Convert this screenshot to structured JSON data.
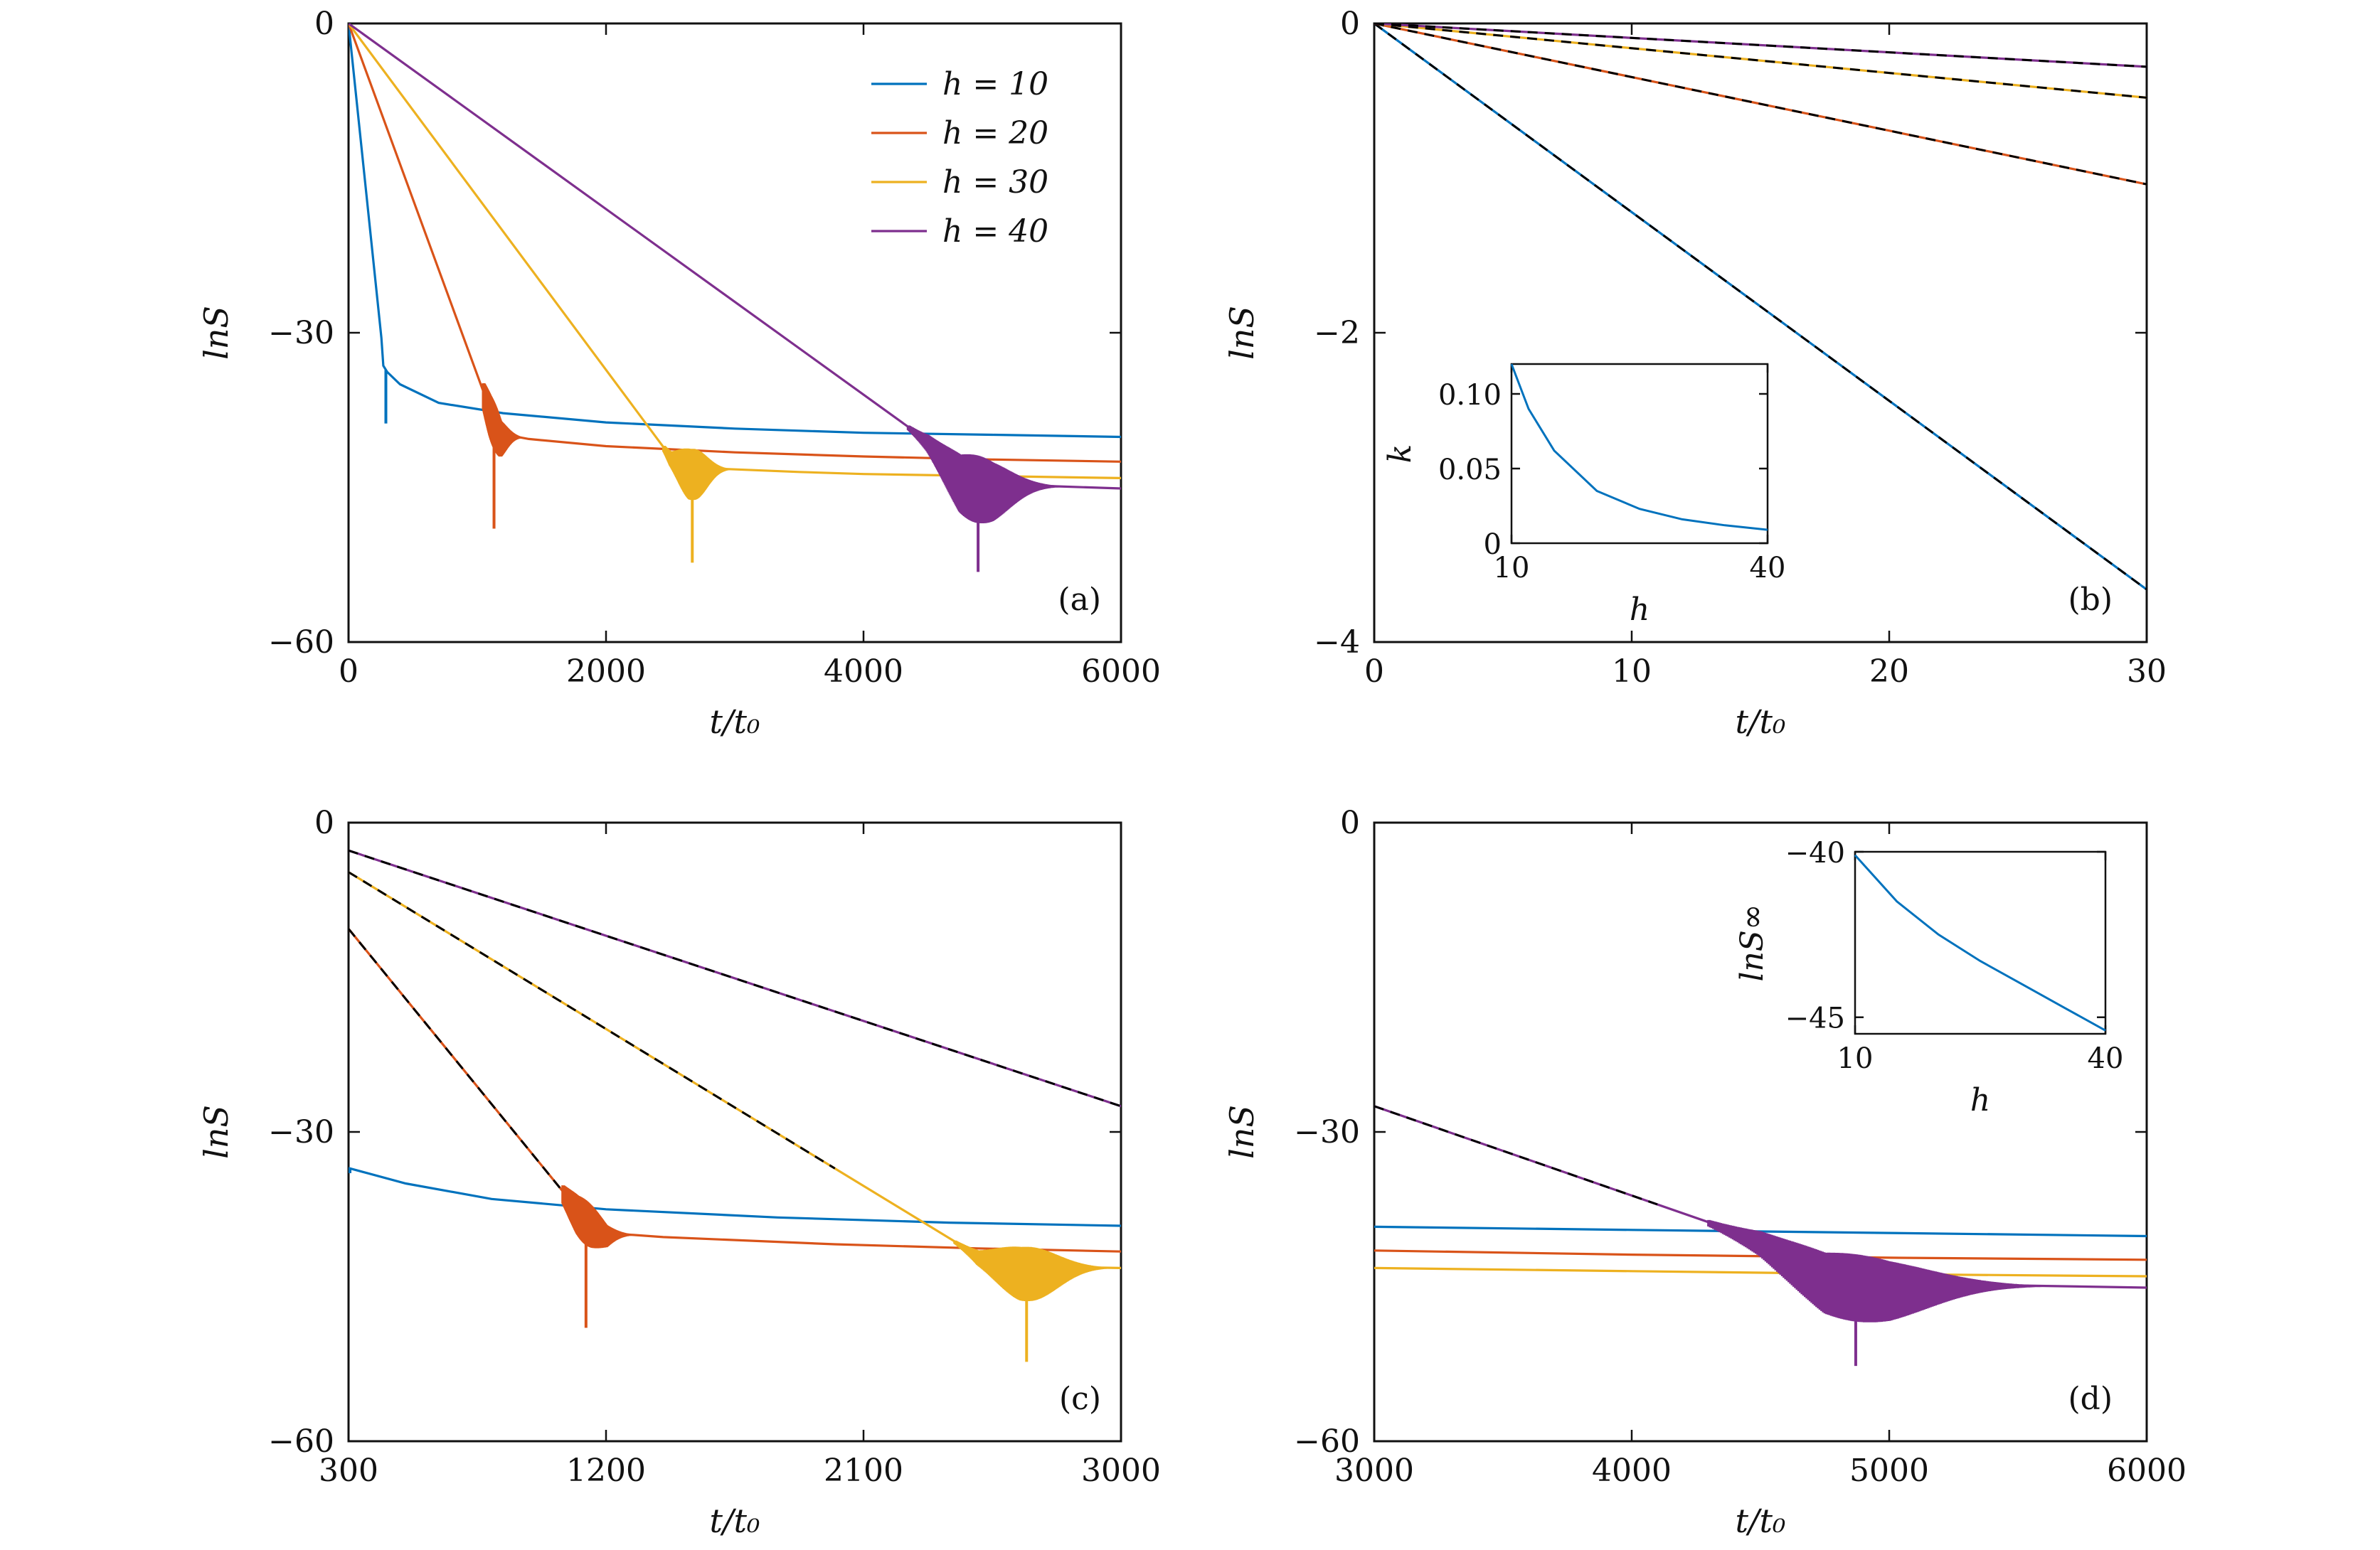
{
  "figure": {
    "colors": {
      "h10": "#0072bd",
      "h20": "#d95319",
      "h30": "#edb120",
      "h40": "#7e2f8e",
      "fit": "#000000"
    },
    "legend": {
      "entries": [
        "h = 10",
        "h = 20",
        "h = 30",
        "h = 40"
      ]
    }
  },
  "chart_data": [
    {
      "panel": "(a)",
      "type": "line",
      "xlabel": "t/t₀",
      "ylabel": "lnS",
      "xlim": [
        0,
        6000
      ],
      "ylim": [
        -60,
        0
      ],
      "xticks": [
        0,
        2000,
        4000,
        6000
      ],
      "yticks": [
        0,
        -30,
        -60
      ],
      "xtick_labels": [
        "0",
        "2000",
        "4000",
        "6000"
      ],
      "ytick_labels": [
        "0",
        "−30",
        "−60"
      ],
      "legend": "top-right",
      "series": [
        {
          "name": "h = 10",
          "color": "h10",
          "points": [
            [
              0,
              0
            ],
            [
              255,
              -30.5
            ],
            [
              270,
              -33.2
            ],
            [
              300,
              -33.8
            ],
            [
              400,
              -35
            ],
            [
              700,
              -36.8
            ],
            [
              1200,
              -37.8
            ],
            [
              2000,
              -38.7
            ],
            [
              3000,
              -39.3
            ],
            [
              4000,
              -39.7
            ],
            [
              5000,
              -39.9
            ],
            [
              6000,
              -40.1
            ]
          ],
          "dip": [
            290,
            -38.8
          ]
        },
        {
          "name": "h = 20",
          "color": "h20",
          "points": [
            [
              0,
              0
            ],
            [
              1100,
              -37.5
            ],
            [
              1180,
              -39.8
            ],
            [
              1400,
              -40.3
            ],
            [
              2000,
              -41
            ],
            [
              3000,
              -41.6
            ],
            [
              4000,
              -42
            ],
            [
              5000,
              -42.3
            ],
            [
              6000,
              -42.5
            ]
          ],
          "dip": [
            1130,
            -49
          ]
        },
        {
          "name": "h = 30",
          "color": "h30",
          "points": [
            [
              0,
              0
            ],
            [
              2500,
              -42
            ],
            [
              2650,
              -43
            ],
            [
              2900,
              -43.2
            ],
            [
              3500,
              -43.5
            ],
            [
              4000,
              -43.7
            ],
            [
              5000,
              -43.9
            ],
            [
              6000,
              -44.1
            ]
          ],
          "dip": [
            2670,
            -52.3
          ]
        },
        {
          "name": "h = 40",
          "color": "h40",
          "points": [
            [
              0,
              0
            ],
            [
              4500,
              -40.5
            ],
            [
              4750,
              -43.8
            ],
            [
              5000,
              -44.6
            ],
            [
              5500,
              -44.9
            ],
            [
              6000,
              -45.1
            ]
          ],
          "dip": [
            4890,
            -53.2
          ]
        }
      ],
      "bursts": [
        {
          "series": "h = 20",
          "x0": 1050,
          "x1": 1380,
          "xpeak": 1130,
          "ypeak": -39.5,
          "amp": 2.7
        },
        {
          "series": "h = 30",
          "x0": 2450,
          "x1": 3000,
          "xpeak": 2670,
          "ypeak": -43.0,
          "amp": 3.2
        },
        {
          "series": "h = 40",
          "x0": 4350,
          "x1": 5600,
          "xpeak": 4880,
          "ypeak": -44.6,
          "amp": 4.2
        }
      ]
    },
    {
      "panel": "(b)",
      "type": "line",
      "xlabel": "t/t₀",
      "ylabel": "lnS",
      "xlim": [
        0,
        30
      ],
      "ylim": [
        -4,
        0
      ],
      "xticks": [
        0,
        10,
        20,
        30
      ],
      "yticks": [
        0,
        -2,
        -4
      ],
      "xtick_labels": [
        "0",
        "10",
        "20",
        "30"
      ],
      "ytick_labels": [
        "0",
        "−2",
        "−4"
      ],
      "series": [
        {
          "name": "h = 10",
          "color": "h10",
          "points": [
            [
              0,
              0
            ],
            [
              30,
              -3.66
            ]
          ],
          "dashed_fit": true
        },
        {
          "name": "h = 20",
          "color": "h20",
          "points": [
            [
              0,
              0
            ],
            [
              30,
              -1.04
            ]
          ],
          "dashed_fit": true
        },
        {
          "name": "h = 30",
          "color": "h30",
          "points": [
            [
              0,
              0
            ],
            [
              30,
              -0.48
            ]
          ],
          "dashed_fit": true
        },
        {
          "name": "h = 40",
          "color": "h40",
          "points": [
            [
              0,
              0
            ],
            [
              30,
              -0.28
            ]
          ],
          "dashed_fit": true
        }
      ],
      "inset": {
        "xlabel": "h",
        "ylabel": "k",
        "xlim": [
          10,
          40
        ],
        "ylim": [
          0,
          0.12
        ],
        "xticks": [
          10,
          40
        ],
        "yticks": [
          0,
          0.05,
          0.1
        ],
        "xtick_labels": [
          "10",
          "40"
        ],
        "ytick_labels": [
          "0",
          "0.05",
          "0.10"
        ],
        "series": [
          {
            "color": "h10",
            "points": [
              [
                10,
                0.12
              ],
              [
                12,
                0.09
              ],
              [
                15,
                0.062
              ],
              [
                20,
                0.035
              ],
              [
                25,
                0.023
              ],
              [
                30,
                0.016
              ],
              [
                35,
                0.012
              ],
              [
                40,
                0.009
              ]
            ]
          }
        ]
      }
    },
    {
      "panel": "(c)",
      "type": "line",
      "xlabel": "t/t₀",
      "ylabel": "lnS",
      "xlim": [
        300,
        3000
      ],
      "ylim": [
        -60,
        0
      ],
      "xticks": [
        300,
        1200,
        2100,
        3000
      ],
      "yticks": [
        0,
        -30,
        -60
      ],
      "xtick_labels": [
        "300",
        "1200",
        "2100",
        "3000"
      ],
      "ytick_labels": [
        "0",
        "−30",
        "−60"
      ],
      "series": [
        {
          "name": "h = 10",
          "color": "h10",
          "points": [
            [
              300,
              -33.5
            ],
            [
              500,
              -35
            ],
            [
              800,
              -36.5
            ],
            [
              1200,
              -37.5
            ],
            [
              1800,
              -38.3
            ],
            [
              2400,
              -38.8
            ],
            [
              3000,
              -39.1
            ]
          ],
          "dip": [
            305,
            -34
          ]
        },
        {
          "name": "h = 20",
          "color": "h20",
          "points": [
            [
              300,
              -10.3
            ],
            [
              1100,
              -37.5
            ],
            [
              1200,
              -39.8
            ],
            [
              1400,
              -40.2
            ],
            [
              2000,
              -40.9
            ],
            [
              2500,
              -41.3
            ],
            [
              3000,
              -41.6
            ]
          ],
          "dip": [
            1130,
            -49
          ],
          "dashed_fit": [
            300,
            1040
          ]
        },
        {
          "name": "h = 30",
          "color": "h30",
          "points": [
            [
              300,
              -4.8
            ],
            [
              2500,
              -42
            ],
            [
              2650,
              -43
            ],
            [
              2800,
              -43.1
            ],
            [
              3000,
              -43.2
            ]
          ],
          "dip": [
            2670,
            -52.3
          ],
          "dashed_fit": [
            300,
            2000
          ]
        },
        {
          "name": "h = 40",
          "color": "h40",
          "points": [
            [
              300,
              -2.7
            ],
            [
              3000,
              -27.5
            ]
          ],
          "dashed_fit": [
            300,
            3000
          ]
        }
      ],
      "bursts": [
        {
          "series": "h = 20",
          "x0": 1050,
          "x1": 1320,
          "xpeak": 1130,
          "ypeak": -39.5,
          "amp": 2.7
        },
        {
          "series": "h = 30",
          "x0": 2420,
          "x1": 3000,
          "xpeak": 2670,
          "ypeak": -43.0,
          "amp": 3.4
        }
      ]
    },
    {
      "panel": "(d)",
      "type": "line",
      "xlabel": "t/t₀",
      "ylabel": "lnS",
      "xlim": [
        3000,
        6000
      ],
      "ylim": [
        -60,
        0
      ],
      "xticks": [
        3000,
        4000,
        5000,
        6000
      ],
      "yticks": [
        0,
        -30,
        -60
      ],
      "xtick_labels": [
        "3000",
        "4000",
        "5000",
        "6000"
      ],
      "ytick_labels": [
        "0",
        "−30",
        "−60"
      ],
      "series": [
        {
          "name": "h = 10",
          "color": "h10",
          "points": [
            [
              3000,
              -39.2
            ],
            [
              4000,
              -39.5
            ],
            [
              5000,
              -39.8
            ],
            [
              6000,
              -40.1
            ]
          ]
        },
        {
          "name": "h = 20",
          "color": "h20",
          "points": [
            [
              3000,
              -41.5
            ],
            [
              4000,
              -41.9
            ],
            [
              5000,
              -42.2
            ],
            [
              6000,
              -42.4
            ]
          ]
        },
        {
          "name": "h = 30",
          "color": "h30",
          "points": [
            [
              3000,
              -43.2
            ],
            [
              4000,
              -43.5
            ],
            [
              5000,
              -43.8
            ],
            [
              6000,
              -44
            ]
          ]
        },
        {
          "name": "h = 40",
          "color": "h40",
          "points": [
            [
              3000,
              -27.5
            ],
            [
              4500,
              -40.5
            ],
            [
              4750,
              -43.8
            ],
            [
              5000,
              -44.6
            ],
            [
              5500,
              -44.9
            ],
            [
              6000,
              -45.1
            ]
          ],
          "dip": [
            4870,
            -52.7
          ],
          "dashed_fit": [
            3000,
            4100
          ]
        }
      ],
      "bursts": [
        {
          "series": "h = 40",
          "x0": 4300,
          "x1": 5700,
          "xpeak": 4870,
          "ypeak": -44.6,
          "amp": 4.2
        }
      ],
      "inset": {
        "xlabel": "h",
        "ylabel": "lnS∞",
        "xlim": [
          10,
          40
        ],
        "ylim": [
          -45.5,
          -40
        ],
        "xticks": [
          10,
          40
        ],
        "yticks": [
          -40,
          -45
        ],
        "xtick_labels": [
          "10",
          "40"
        ],
        "ytick_labels": [
          "−40",
          "−45"
        ],
        "series": [
          {
            "color": "h10",
            "points": [
              [
                10,
                -40.1
              ],
              [
                15,
                -41.5
              ],
              [
                20,
                -42.5
              ],
              [
                25,
                -43.3
              ],
              [
                30,
                -44
              ],
              [
                35,
                -44.7
              ],
              [
                40,
                -45.4
              ]
            ]
          }
        ]
      }
    }
  ]
}
